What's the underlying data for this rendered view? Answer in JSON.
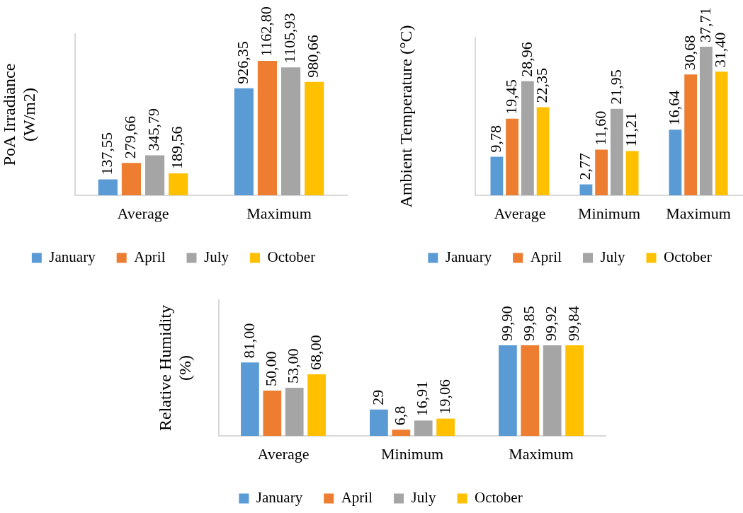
{
  "chart_data": [
    {
      "type": "bar",
      "ylabel": "PoA Irradiance (W/m2)",
      "categories": [
        "Average",
        "Maximum"
      ],
      "legend": "bottom",
      "tick_labels": "x",
      "series": [
        {
          "name": "January",
          "color": "#5b9bd5",
          "values": [
            137.55,
            926.35
          ],
          "value_labels": [
            "137,55",
            "926,35"
          ]
        },
        {
          "name": "April",
          "color": "#ed7d31",
          "values": [
            279.66,
            1162.8
          ],
          "value_labels": [
            "279,66",
            "1162,80"
          ]
        },
        {
          "name": "July",
          "color": "#a5a5a5",
          "values": [
            345.79,
            1105.93
          ],
          "value_labels": [
            "345,79",
            "1105,93"
          ]
        },
        {
          "name": "October",
          "color": "#ffc000",
          "values": [
            189.56,
            980.66
          ],
          "value_labels": [
            "189,56",
            "980,66"
          ]
        }
      ]
    },
    {
      "type": "bar",
      "ylabel": "Ambient Temperature (°C)",
      "categories": [
        "Average",
        "Minimum",
        "Maximum"
      ],
      "legend": "bottom",
      "tick_labels": "x",
      "series": [
        {
          "name": "January",
          "color": "#5b9bd5",
          "values": [
            9.78,
            2.77,
            16.64
          ],
          "value_labels": [
            "9,78",
            "2,77",
            "16,64"
          ]
        },
        {
          "name": "April",
          "color": "#ed7d31",
          "values": [
            19.45,
            11.6,
            30.68
          ],
          "value_labels": [
            "19,45",
            "11,60",
            "30,68"
          ]
        },
        {
          "name": "July",
          "color": "#a5a5a5",
          "values": [
            28.96,
            21.95,
            37.71
          ],
          "value_labels": [
            "28,96",
            "21,95",
            "37,71"
          ]
        },
        {
          "name": "October",
          "color": "#ffc000",
          "values": [
            22.35,
            11.21,
            31.4
          ],
          "value_labels": [
            "22,35",
            "11,21",
            "31,40"
          ]
        }
      ]
    },
    {
      "type": "bar",
      "ylabel": "Relative Humidity (%)",
      "categories": [
        "Average",
        "Minimum",
        "Maximum"
      ],
      "legend": "bottom",
      "tick_labels": "x",
      "series": [
        {
          "name": "January",
          "color": "#5b9bd5",
          "values": [
            81.0,
            29,
            99.9
          ],
          "value_labels": [
            "81,00",
            "29",
            "99,90"
          ]
        },
        {
          "name": "April",
          "color": "#ed7d31",
          "values": [
            50.0,
            6.8,
            99.85
          ],
          "value_labels": [
            "50,00",
            "6,8",
            "99,85"
          ]
        },
        {
          "name": "July",
          "color": "#a5a5a5",
          "values": [
            53.0,
            16.91,
            99.92
          ],
          "value_labels": [
            "53,00",
            "16,91",
            "99,92"
          ]
        },
        {
          "name": "October",
          "color": "#ffc000",
          "values": [
            68.0,
            19.06,
            99.84
          ],
          "value_labels": [
            "68,00",
            "19,06",
            "99,84"
          ]
        }
      ]
    }
  ]
}
